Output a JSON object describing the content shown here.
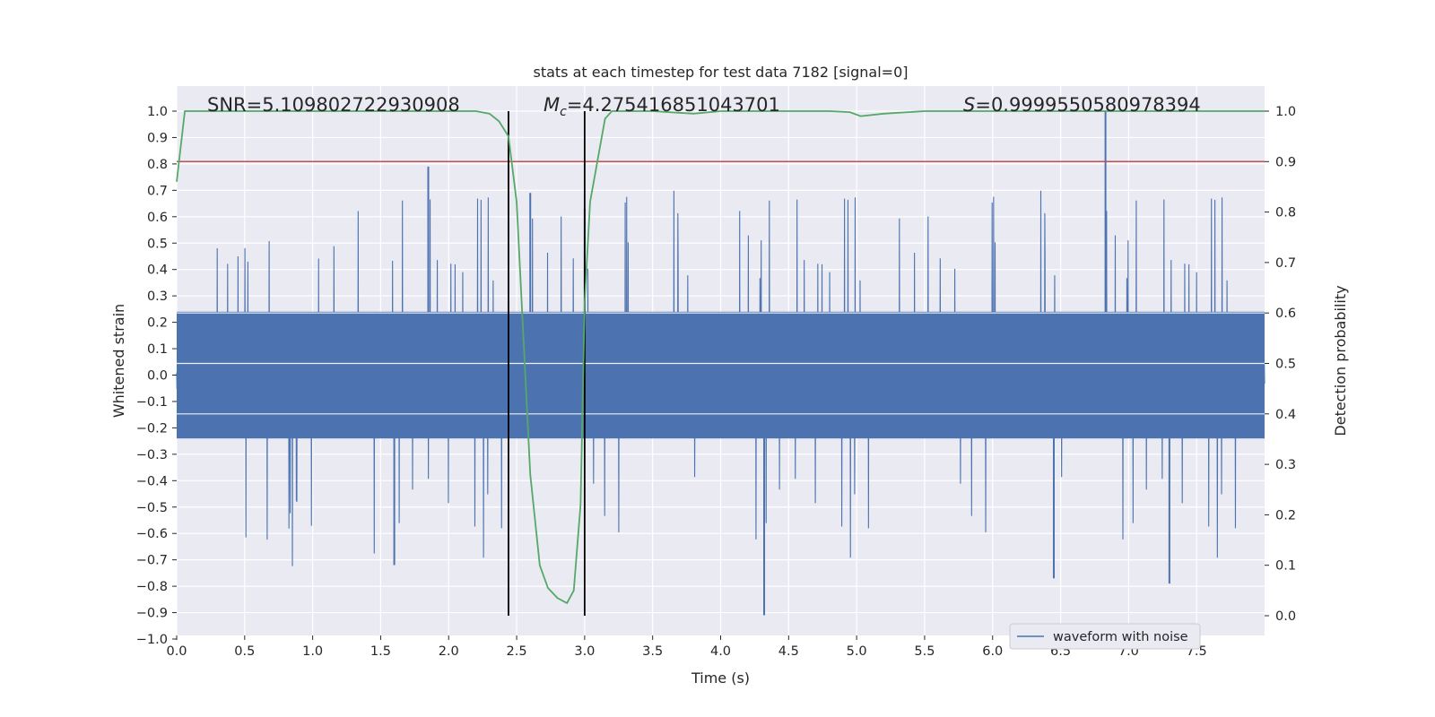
{
  "chart_data": {
    "type": "line",
    "title": "stats at each timestep for test data 7182 [signal=0]",
    "xlabel": "Time (s)",
    "ylabel": "Whitened strain",
    "y2label": "Detection probability",
    "xlim": [
      0.0,
      8.0
    ],
    "ylim": [
      -1.0,
      1.0
    ],
    "y2lim": [
      -0.047,
      1.035
    ],
    "x_ticks": [
      "0.0",
      "0.5",
      "1.0",
      "1.5",
      "2.0",
      "2.5",
      "3.0",
      "3.5",
      "4.0",
      "4.5",
      "5.0",
      "5.5",
      "6.0",
      "6.5",
      "7.0",
      "7.5"
    ],
    "x_tick_values": [
      0.0,
      0.5,
      1.0,
      1.5,
      2.0,
      2.5,
      3.0,
      3.5,
      4.0,
      4.5,
      5.0,
      5.5,
      6.0,
      6.5,
      7.0,
      7.5
    ],
    "y_ticks": [
      "1.0",
      "0.9",
      "0.8",
      "0.7",
      "0.6",
      "0.5",
      "0.4",
      "0.3",
      "0.2",
      "0.1",
      "0.0",
      "−0.1",
      "−0.2",
      "−0.3",
      "−0.4",
      "−0.5",
      "−0.6",
      "−0.7",
      "−0.8",
      "−0.9",
      "−1.0"
    ],
    "y_tick_values": [
      1.0,
      0.9,
      0.8,
      0.7,
      0.6,
      0.5,
      0.4,
      0.3,
      0.2,
      0.1,
      0.0,
      -0.1,
      -0.2,
      -0.3,
      -0.4,
      -0.5,
      -0.6,
      -0.7,
      -0.8,
      -0.9,
      -1.0
    ],
    "y2_ticks": [
      "1.0",
      "0.9",
      "0.8",
      "0.7",
      "0.6",
      "0.5",
      "0.4",
      "0.3",
      "0.2",
      "0.1",
      "0.0"
    ],
    "y2_tick_values": [
      1.0,
      0.9,
      0.8,
      0.7,
      0.6,
      0.5,
      0.4,
      0.3,
      0.2,
      0.1,
      0.0
    ],
    "annotations": {
      "snr": "SNR=5.109802722930908",
      "mc": "=4.275416851043701",
      "mc_symbol": "M",
      "mc_subscript": "c",
      "s": "=0.9999550580978394",
      "s_symbol": "S"
    },
    "legend": {
      "label": "waveform with noise",
      "position": "lower-right"
    },
    "threshold": {
      "value": 0.9,
      "axis": "right",
      "color": "#c44e52"
    },
    "vlines": [
      2.44,
      3.0
    ],
    "grid": true,
    "series": [
      {
        "name": "waveform with noise",
        "axis": "left",
        "color": "#4c72b0",
        "style": "dense noise, amplitude mostly within ±0.25, peaks near ±0.8",
        "notable_spikes": [
          [
            1.85,
            0.79
          ],
          [
            6.83,
            1.0
          ],
          [
            4.32,
            -0.91
          ],
          [
            1.6,
            -0.72
          ],
          [
            2.6,
            0.69
          ],
          [
            3.0,
            0.63
          ],
          [
            7.3,
            -0.79
          ],
          [
            6.45,
            -0.77
          ]
        ]
      },
      {
        "name": "detection probability",
        "axis": "right",
        "color": "#55a868",
        "x": [
          0.0,
          0.06,
          0.15,
          0.5,
          1.0,
          1.5,
          2.0,
          2.2,
          2.3,
          2.37,
          2.44,
          2.5,
          2.55,
          2.6,
          2.67,
          2.73,
          2.8,
          2.87,
          2.92,
          2.97,
          3.0,
          3.04,
          3.1,
          3.15,
          3.2,
          3.5,
          3.8,
          4.0,
          4.5,
          4.8,
          4.95,
          5.03,
          5.2,
          5.5,
          6.0,
          7.0,
          8.0
        ],
        "y": [
          0.86,
          1.0,
          1.0,
          1.0,
          1.0,
          1.0,
          1.0,
          1.0,
          0.995,
          0.98,
          0.95,
          0.82,
          0.55,
          0.28,
          0.1,
          0.055,
          0.035,
          0.025,
          0.05,
          0.22,
          0.62,
          0.82,
          0.91,
          0.985,
          1.0,
          1.0,
          0.995,
          1.0,
          1.0,
          1.0,
          0.998,
          0.99,
          0.995,
          1.0,
          1.0,
          1.0,
          1.0
        ]
      }
    ]
  }
}
